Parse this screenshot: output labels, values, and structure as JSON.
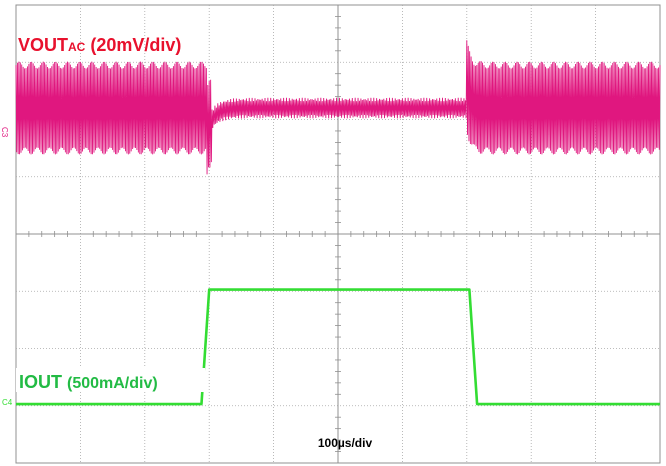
{
  "chart_data": {
    "type": "line",
    "title": "",
    "xlabel": "100µs/div",
    "x_unit": "µs",
    "x_per_div": 100,
    "xlim": [
      0,
      500
    ],
    "grid": true,
    "series": [
      {
        "name": "VOUT",
        "name_sub": "AC",
        "scale_label": "(20mV/div)",
        "channel": "C3",
        "unit": "mV",
        "color": "#e0177f",
        "label_color": "#e8112d",
        "style": "ripple",
        "ripple_p2p_mV": [
          30,
          6,
          30
        ],
        "events": [
          {
            "x": 148,
            "kind": "drop",
            "delta_mV": -8
          },
          {
            "x": 350,
            "kind": "overshoot",
            "delta_mV": 8
          }
        ]
      },
      {
        "name": "IOUT",
        "scale_label": "(500mA/div)",
        "channel": "C4",
        "unit": "mA",
        "color": "#33dd33",
        "label_color": "#22bb44",
        "x": [
          0,
          144,
          150,
          352,
          358,
          500
        ],
        "y": [
          0,
          0,
          1000,
          1000,
          0,
          0
        ]
      }
    ]
  }
}
